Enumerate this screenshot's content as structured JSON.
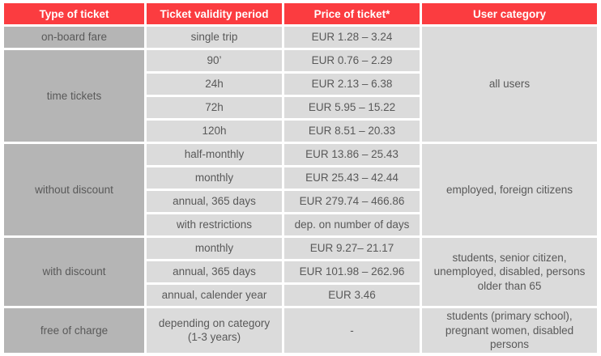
{
  "chart_data": {
    "type": "table",
    "columns": [
      "Type of ticket",
      "Ticket validity period",
      "Price of ticket*",
      "User category"
    ],
    "rows": [
      [
        "on-board fare",
        "single trip",
        "EUR 1.28 – 3.24",
        "all users"
      ],
      [
        "time tickets",
        "90’",
        "EUR 0.76 – 2.29",
        "all users"
      ],
      [
        "time tickets",
        "24h",
        "EUR 2.13 – 6.38",
        "all users"
      ],
      [
        "time tickets",
        "72h",
        "EUR 5.95 – 15.22",
        "all users"
      ],
      [
        "time tickets",
        "120h",
        "EUR 8.51 – 20.33",
        "all users"
      ],
      [
        "without discount",
        "half-monthly",
        "EUR 13.86 – 25.43",
        "employed, foreign citizens"
      ],
      [
        "without discount",
        "monthly",
        "EUR 25.43 – 42.44",
        "employed, foreign citizens"
      ],
      [
        "without discount",
        "annual, 365 days",
        "EUR 279.74 – 466.86",
        "employed, foreign citizens"
      ],
      [
        "without discount",
        "with restrictions",
        "dep. on number of days",
        "employed, foreign citizens"
      ],
      [
        "with discount",
        "monthly",
        "EUR 9.27– 21.17",
        "students, senior citizen, unemployed, disabled, persons older than 65"
      ],
      [
        "with discount",
        "annual, 365 days",
        "EUR 101.98 – 262.96",
        "students, senior citizen, unemployed, disabled, persons older than 65"
      ],
      [
        "with discount",
        "annual, calender year",
        "EUR 3.46",
        "students, senior citizen, unemployed, disabled, persons older than 65"
      ],
      [
        "free of charge",
        "depending on category (1-3 years)",
        "-",
        "students (primary school), pregnant women, disabled persons"
      ]
    ],
    "merged_cells": [
      {
        "column": 0,
        "rows": [
          1,
          4
        ],
        "value": "time tickets"
      },
      {
        "column": 0,
        "rows": [
          5,
          8
        ],
        "value": "without discount"
      },
      {
        "column": 0,
        "rows": [
          9,
          11
        ],
        "value": "with discount"
      },
      {
        "column": 3,
        "rows": [
          0,
          4
        ],
        "value": "all users"
      },
      {
        "column": 3,
        "rows": [
          5,
          8
        ],
        "value": "employed, foreign citizens"
      },
      {
        "column": 3,
        "rows": [
          9,
          11
        ],
        "value": "students, senior citizen, unemployed, disabled, persons older than 65"
      }
    ],
    "layout_hints": {
      "grid": "white 3px gaps between cells",
      "header_style": "bold white on red",
      "first_column_style": "dark gray",
      "body_style": "light gray"
    }
  },
  "colors": {
    "header_bg": "#fb3c40",
    "header_text": "#ffffff",
    "type_column_bg": "#b5b5b5",
    "body_cell_bg": "#dbdbdb",
    "body_text": "#595959",
    "grid_gap": "#ffffff"
  }
}
